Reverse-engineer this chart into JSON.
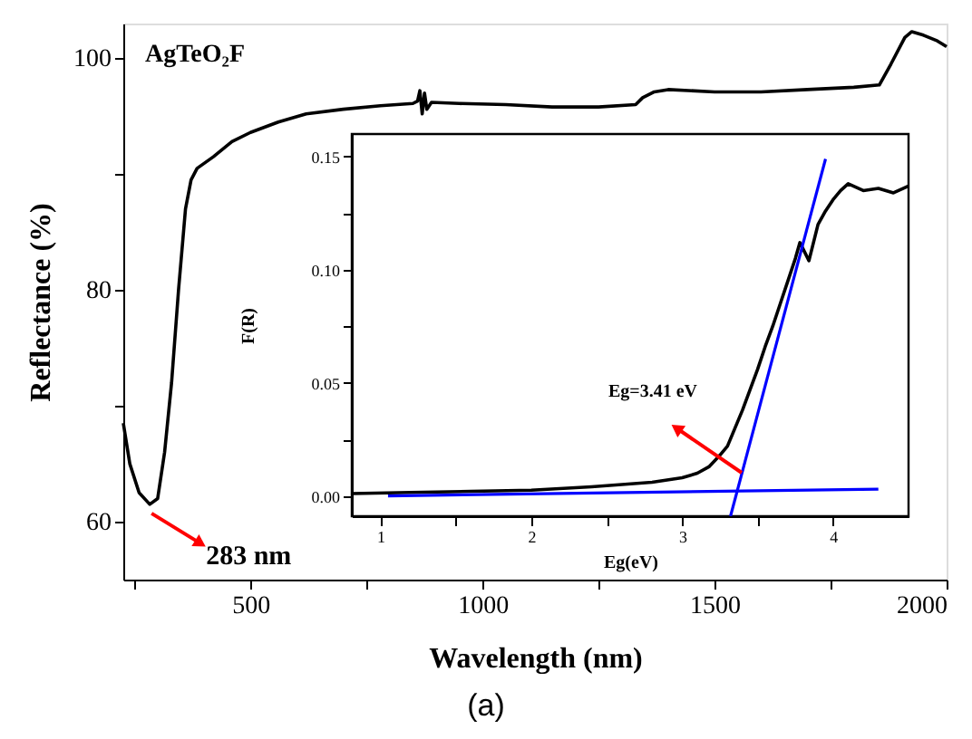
{
  "chart_data": [
    {
      "type": "line",
      "title": "AgTeO₂F",
      "xlabel": "Wavelength (nm)",
      "ylabel": "Reflectance (%)",
      "xlim": [
        226,
        2000
      ],
      "ylim": [
        55,
        103
      ],
      "xticks": [
        {
          "value": 250,
          "label": null
        },
        500,
        {
          "value": 750,
          "label": null
        },
        1000,
        {
          "value": 1250,
          "label": null
        },
        1500,
        {
          "value": 1750,
          "label": null
        },
        2000
      ],
      "yticks": [
        60,
        {
          "value": 70,
          "label": null
        },
        80,
        {
          "value": 90,
          "label": null
        },
        100
      ],
      "series": [
        {
          "color": "#000000",
          "x": [
            226,
            240,
            260,
            283,
            300,
            315,
            330,
            345,
            360,
            372,
            385,
            420,
            460,
            500,
            560,
            620,
            700,
            780,
            850,
            860,
            865,
            870,
            875,
            880,
            890,
            950,
            1050,
            1150,
            1250,
            1330,
            1345,
            1370,
            1400,
            1500,
            1600,
            1700,
            1800,
            1855,
            1880,
            1910,
            1925,
            1950,
            1980,
            2000
          ],
          "values": [
            68.5,
            65,
            62.5,
            61.5,
            62,
            66,
            72,
            80,
            87,
            89.5,
            90.5,
            91.5,
            92.8,
            93.6,
            94.5,
            95.2,
            95.6,
            95.9,
            96.1,
            96.3,
            97.2,
            95.2,
            97.0,
            95.6,
            96.2,
            96.1,
            96.0,
            95.8,
            95.8,
            96.0,
            96.6,
            97.1,
            97.3,
            97.1,
            97.1,
            97.3,
            97.5,
            97.7,
            99.5,
            101.8,
            102.3,
            102,
            101.5,
            101.0
          ]
        }
      ],
      "annotations": [
        {
          "text": "283 nm",
          "x": 283,
          "y": 61.5
        },
        "(a)"
      ]
    },
    {
      "type": "line",
      "xlabel": "Eg(eV)",
      "ylabel": "F(R)",
      "xlim": [
        0.81,
        4.5
      ],
      "ylim": [
        -0.009,
        0.16
      ],
      "xticks": [
        1,
        {
          "value": 1.5,
          "label": null
        },
        2,
        {
          "value": 2.5,
          "label": null
        },
        3,
        {
          "value": 3.5,
          "label": null
        },
        4
      ],
      "yticks": [
        {
          "value": 0,
          "label": "0.00"
        },
        {
          "value": 0.025,
          "label": null
        },
        {
          "value": 0.05,
          "label": "0.05"
        },
        {
          "value": 0.075,
          "label": null
        },
        {
          "value": 0.1,
          "label": "0.10"
        },
        {
          "value": 0.125,
          "label": null
        },
        {
          "value": 0.15,
          "label": "0.15"
        }
      ],
      "series": [
        {
          "color": "#000000",
          "x": [
            0.81,
            1.2,
            1.6,
            2.0,
            2.4,
            2.8,
            3.0,
            3.1,
            3.18,
            3.25,
            3.3,
            3.35,
            3.4,
            3.45,
            3.5,
            3.55,
            3.6,
            3.65,
            3.7,
            3.75,
            3.78,
            3.81,
            3.84,
            3.9,
            3.95,
            4.0,
            4.05,
            4.1,
            4.2,
            4.3,
            4.4,
            4.5
          ],
          "values": [
            0.001,
            0.0015,
            0.002,
            0.0025,
            0.004,
            0.006,
            0.008,
            0.01,
            0.013,
            0.018,
            0.022,
            0.03,
            0.038,
            0.047,
            0.056,
            0.066,
            0.075,
            0.085,
            0.095,
            0.105,
            0.112,
            0.108,
            0.104,
            0.12,
            0.126,
            0.131,
            0.135,
            0.138,
            0.135,
            0.136,
            0.134,
            0.137
          ]
        },
        {
          "type": "line",
          "color": "#0000ff",
          "x": [
            3.32,
            3.95
          ],
          "values": [
            -0.009,
            0.149
          ]
        },
        {
          "type": "line",
          "color": "#0000ff",
          "x": [
            1.05,
            4.3
          ],
          "values": [
            0.0,
            0.003
          ]
        }
      ],
      "annotations": [
        "Eg=3.41 eV"
      ]
    }
  ]
}
